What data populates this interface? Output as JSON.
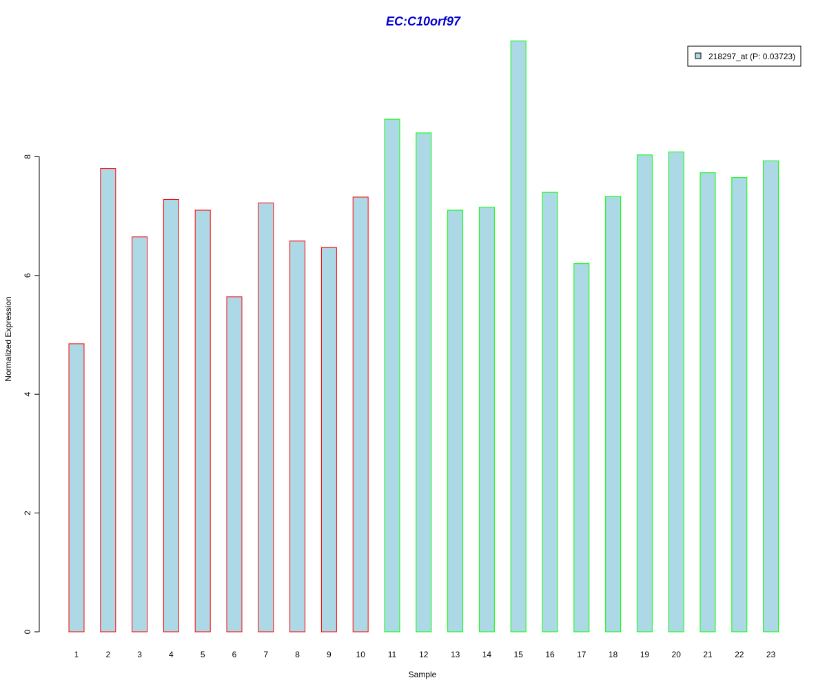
{
  "chart_data": {
    "type": "bar",
    "title": "EC:C10orf97",
    "xlabel": "Sample",
    "ylabel": "Normalized Expression",
    "categories": [
      "1",
      "2",
      "3",
      "4",
      "5",
      "6",
      "7",
      "8",
      "9",
      "10",
      "11",
      "12",
      "13",
      "14",
      "15",
      "16",
      "17",
      "18",
      "19",
      "20",
      "21",
      "22",
      "23"
    ],
    "series": [
      {
        "name": "218297_at (P: 0.03723)",
        "values": [
          4.85,
          7.8,
          6.65,
          7.28,
          7.1,
          5.64,
          7.22,
          6.58,
          6.47,
          7.32,
          8.63,
          8.4,
          7.1,
          7.15,
          9.95,
          7.4,
          6.2,
          7.33,
          8.03,
          8.08,
          7.73,
          7.65,
          7.93
        ]
      }
    ],
    "group_outline": [
      "red",
      "red",
      "red",
      "red",
      "red",
      "red",
      "red",
      "red",
      "red",
      "red",
      "green",
      "green",
      "green",
      "green",
      "green",
      "green",
      "green",
      "green",
      "green",
      "green",
      "green",
      "green",
      "green"
    ],
    "yticks": [
      0,
      2,
      4,
      6,
      8
    ],
    "ylim": [
      0,
      10
    ],
    "legend_position": "top-right",
    "grid": false
  },
  "colors": {
    "bar_fill": "#add8e6",
    "red_outline": "#ff0000",
    "green_outline": "#00ff00",
    "title": "#0000cc",
    "axis": "#000000"
  }
}
